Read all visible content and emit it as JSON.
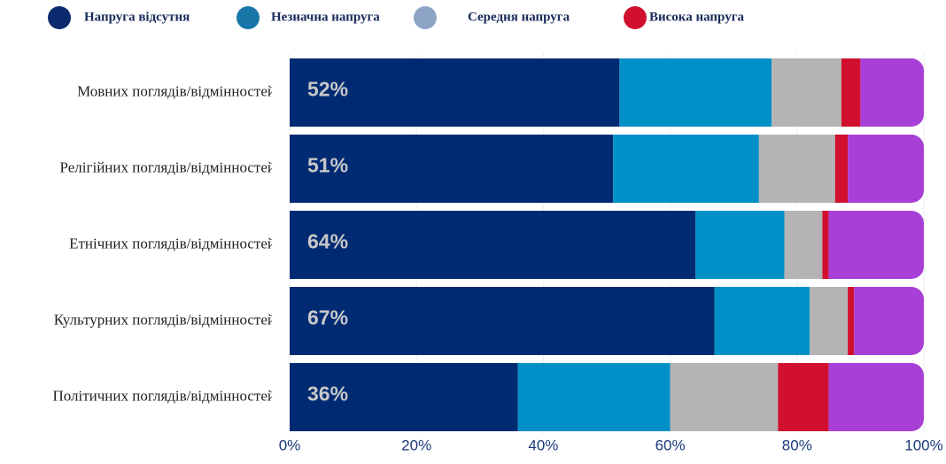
{
  "chart_data": {
    "type": "stacked-bar",
    "orientation": "horizontal",
    "categories": [
      "Мовних поглядів/відмінностей",
      "Релігійних поглядів/відмінностей",
      "Етнічних поглядів/відмінностей",
      "Культурних поглядів/відмінностей",
      "Політичних поглядів/відмінностей"
    ],
    "series": [
      {
        "name": "Напруга відсутня",
        "color": "#002b73",
        "legend_color": "#0c2b6e",
        "values": [
          52,
          51,
          64,
          67,
          36
        ],
        "value_labels": [
          "52%",
          "51%",
          "64%",
          "67%",
          "36%"
        ]
      },
      {
        "name": "Незначна напруга",
        "color": "#0090c8",
        "legend_color": "#1a76a8",
        "values": [
          24,
          23,
          14,
          15,
          24
        ]
      },
      {
        "name": "Середня напруга",
        "color": "#b4b4b4",
        "legend_color": "#8ea4c6",
        "values": [
          11,
          12,
          6,
          6,
          17
        ]
      },
      {
        "name": "Висока напруга",
        "color": "#d0102e",
        "legend_color": "#d0102e",
        "values": [
          3,
          2,
          1,
          1,
          8
        ]
      },
      {
        "color": "#a83fd6",
        "values": [
          10,
          12,
          15,
          11,
          15
        ]
      }
    ],
    "xlim": [
      0,
      100
    ],
    "xticks": [
      {
        "value": 0,
        "label": "0%"
      },
      {
        "value": 20,
        "label": "20%"
      },
      {
        "value": 40,
        "label": "40%"
      },
      {
        "value": 60,
        "label": "60%"
      },
      {
        "value": 80,
        "label": "80%"
      },
      {
        "value": 100,
        "label": "100%"
      }
    ],
    "grid": true,
    "legend": "top"
  }
}
